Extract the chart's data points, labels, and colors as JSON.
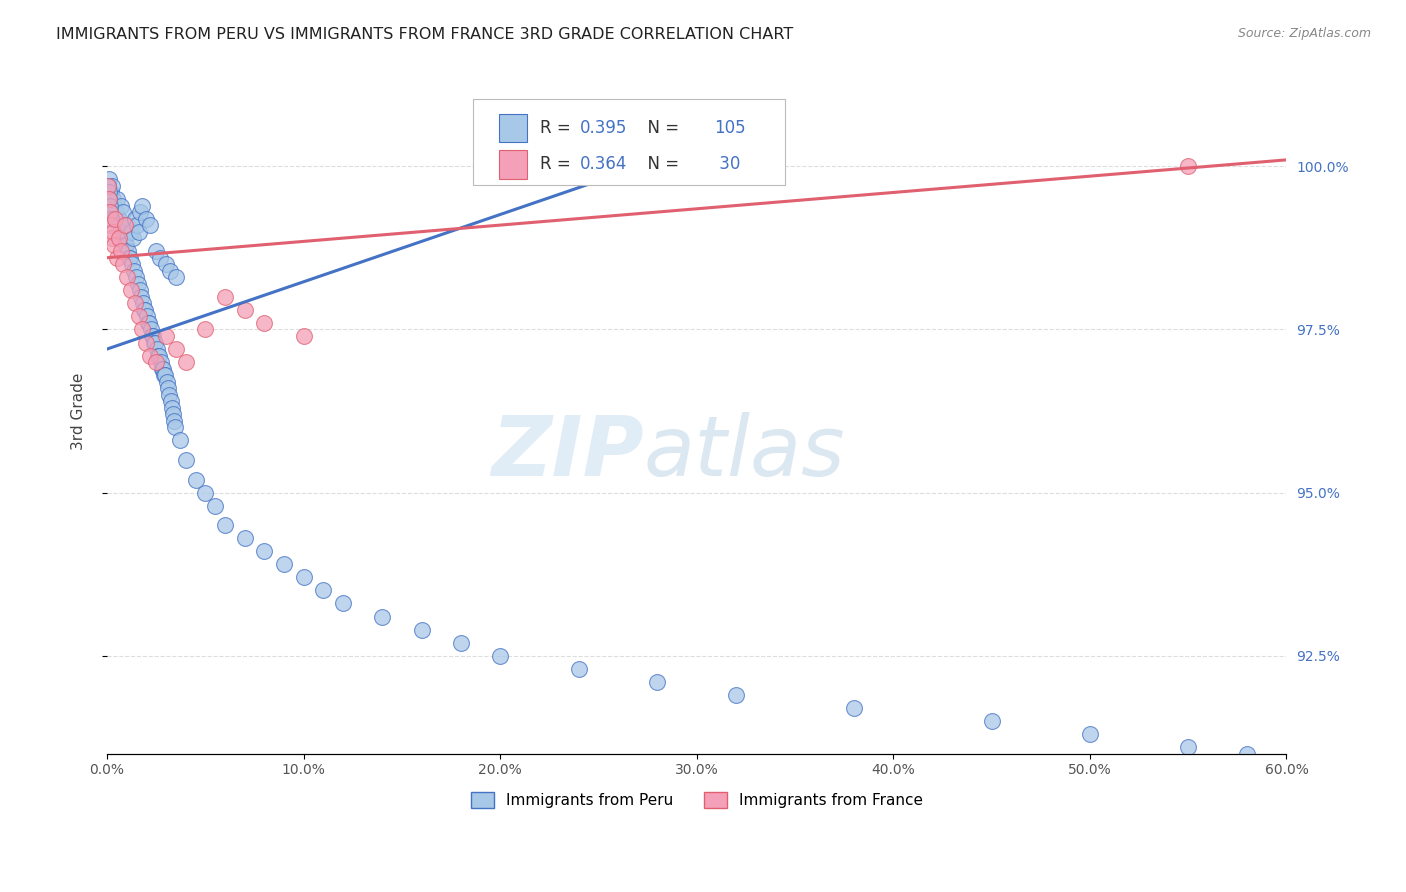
{
  "title": "IMMIGRANTS FROM PERU VS IMMIGRANTS FROM FRANCE 3RD GRADE CORRELATION CHART",
  "source": "Source: ZipAtlas.com",
  "xlabel_vals": [
    0.0,
    10.0,
    20.0,
    30.0,
    40.0,
    50.0,
    60.0
  ],
  "ylabel_vals": [
    92.5,
    95.0,
    97.5,
    100.0
  ],
  "xlim": [
    0.0,
    60.0
  ],
  "ylim": [
    91.0,
    101.5
  ],
  "ylabel": "3rd Grade",
  "watermark_zip": "ZIP",
  "watermark_atlas": "atlas",
  "peru_color": "#a8c8e8",
  "france_color": "#f4a0b8",
  "peru_line_color": "#4472C4",
  "france_line_color": "#E06070",
  "peru_R": 0.395,
  "peru_N": 105,
  "france_R": 0.364,
  "france_N": 30,
  "legend_peru": "Immigrants from Peru",
  "legend_france": "Immigrants from France",
  "peru_scatter_x": [
    0.05,
    0.08,
    0.1,
    0.12,
    0.15,
    0.18,
    0.2,
    0.22,
    0.25,
    0.28,
    0.3,
    0.35,
    0.4,
    0.45,
    0.5,
    0.55,
    0.6,
    0.65,
    0.7,
    0.75,
    0.8,
    0.85,
    0.9,
    0.95,
    1.0,
    1.05,
    1.1,
    1.15,
    1.2,
    1.25,
    1.3,
    1.35,
    1.4,
    1.45,
    1.5,
    1.55,
    1.6,
    1.65,
    1.7,
    1.75,
    1.8,
    1.85,
    1.9,
    1.95,
    2.0,
    2.05,
    2.1,
    2.15,
    2.2,
    2.25,
    2.3,
    2.35,
    2.4,
    2.45,
    2.5,
    2.55,
    2.6,
    2.65,
    2.7,
    2.75,
    2.8,
    2.85,
    2.9,
    2.95,
    3.0,
    3.05,
    3.1,
    3.15,
    3.2,
    3.25,
    3.3,
    3.35,
    3.4,
    3.45,
    3.5,
    3.7,
    4.0,
    4.5,
    5.0,
    5.5,
    6.0,
    7.0,
    8.0,
    9.0,
    10.0,
    11.0,
    12.0,
    14.0,
    16.0,
    18.0,
    20.0,
    24.0,
    28.0,
    32.0,
    38.0,
    45.0,
    50.0,
    55.0,
    58.0,
    0.06,
    0.09,
    0.11,
    0.14,
    0.17,
    0.21
  ],
  "peru_scatter_y": [
    99.7,
    99.6,
    99.8,
    99.5,
    99.6,
    99.4,
    99.5,
    99.6,
    99.7,
    99.5,
    99.4,
    99.4,
    99.3,
    99.3,
    99.5,
    99.2,
    99.2,
    99.1,
    99.4,
    99.0,
    99.3,
    98.9,
    98.8,
    98.8,
    99.1,
    98.7,
    98.6,
    98.6,
    99.0,
    98.5,
    98.9,
    98.4,
    99.2,
    98.3,
    99.1,
    98.2,
    99.0,
    98.1,
    99.3,
    98.0,
    99.4,
    97.9,
    97.8,
    97.8,
    99.2,
    97.7,
    97.6,
    97.6,
    99.1,
    97.5,
    97.4,
    97.4,
    97.3,
    97.3,
    98.7,
    97.2,
    97.1,
    97.1,
    98.6,
    97.0,
    96.9,
    96.9,
    96.8,
    96.8,
    98.5,
    96.7,
    96.6,
    96.5,
    98.4,
    96.4,
    96.3,
    96.2,
    96.1,
    96.0,
    98.3,
    95.8,
    95.5,
    95.2,
    95.0,
    94.8,
    94.5,
    94.3,
    94.1,
    93.9,
    93.7,
    93.5,
    93.3,
    93.1,
    92.9,
    92.7,
    92.5,
    92.3,
    92.1,
    91.9,
    91.7,
    91.5,
    91.3,
    91.1,
    91.0,
    99.7,
    99.6,
    99.5,
    99.4,
    99.3,
    99.2
  ],
  "france_scatter_x": [
    0.05,
    0.1,
    0.15,
    0.2,
    0.25,
    0.3,
    0.35,
    0.4,
    0.5,
    0.6,
    0.7,
    0.8,
    0.9,
    1.0,
    1.2,
    1.4,
    1.6,
    1.8,
    2.0,
    2.2,
    2.5,
    3.0,
    3.5,
    4.0,
    5.0,
    6.0,
    7.0,
    8.0,
    10.0,
    55.0
  ],
  "france_scatter_y": [
    99.7,
    99.5,
    99.3,
    99.1,
    98.9,
    99.0,
    98.8,
    99.2,
    98.6,
    98.9,
    98.7,
    98.5,
    99.1,
    98.3,
    98.1,
    97.9,
    97.7,
    97.5,
    97.3,
    97.1,
    97.0,
    97.4,
    97.2,
    97.0,
    97.5,
    98.0,
    97.8,
    97.6,
    97.4,
    100.0
  ],
  "peru_trend_x": [
    0.0,
    32.0
  ],
  "peru_trend_y": [
    97.2,
    100.5
  ],
  "france_trend_x": [
    0.0,
    60.0
  ],
  "france_trend_y": [
    98.6,
    100.1
  ],
  "background_color": "#ffffff",
  "grid_color": "#dddddd",
  "title_color": "#222222",
  "source_color": "#888888",
  "axis_label_color": "#444444",
  "right_tick_color": "#4472C4"
}
